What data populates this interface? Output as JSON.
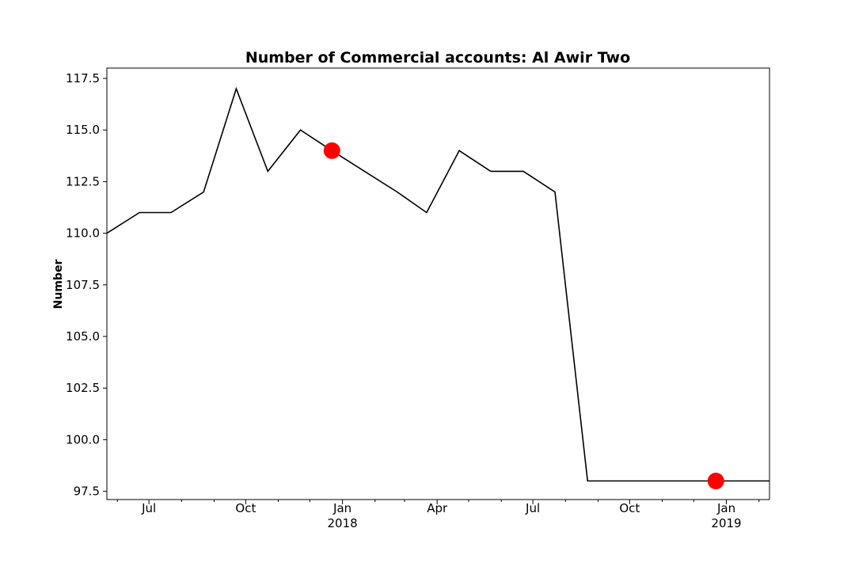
{
  "chart_data": {
    "type": "line",
    "title": "Number of Commercial accounts: Al Awir Two",
    "xlabel": "",
    "ylabel": "Number",
    "ylim": [
      97.1,
      118.0
    ],
    "xlim": [
      "2017-05-22",
      "2019-02-11"
    ],
    "grid": false,
    "yticks": [
      97.5,
      100.0,
      102.5,
      105.0,
      107.5,
      110.0,
      112.5,
      115.0,
      117.5
    ],
    "xticks_major": [
      {
        "date": "2017-07-01",
        "label": "Jul"
      },
      {
        "date": "2017-10-01",
        "label": "Oct"
      },
      {
        "date": "2018-01-01",
        "label": "Jan\n2018"
      },
      {
        "date": "2018-04-01",
        "label": "Apr"
      },
      {
        "date": "2018-07-01",
        "label": "Jul"
      },
      {
        "date": "2018-10-01",
        "label": "Oct"
      },
      {
        "date": "2019-01-01",
        "label": "Jan\n2019"
      }
    ],
    "series": [
      {
        "color": "#000000",
        "x": [
          "2017-05-22",
          "2017-06-22",
          "2017-07-22",
          "2017-08-22",
          "2017-09-22",
          "2017-10-22",
          "2017-11-22",
          "2017-12-22",
          "2018-01-22",
          "2018-02-22",
          "2018-03-22",
          "2018-04-22",
          "2018-05-22",
          "2018-06-22",
          "2018-07-22",
          "2018-08-22",
          "2018-09-22",
          "2018-10-22",
          "2018-11-22",
          "2018-12-22",
          "2019-01-22",
          "2019-02-11"
        ],
        "y": [
          110,
          111,
          111,
          112,
          117,
          113,
          115,
          114,
          113,
          112,
          111,
          114,
          113,
          113,
          112,
          98,
          98,
          98,
          98,
          98,
          98,
          98
        ]
      }
    ],
    "highlights": [
      {
        "x": "2017-12-22",
        "y": 114,
        "color": "#ff0000"
      },
      {
        "x": "2018-12-22",
        "y": 98,
        "color": "#ff0000"
      }
    ]
  }
}
